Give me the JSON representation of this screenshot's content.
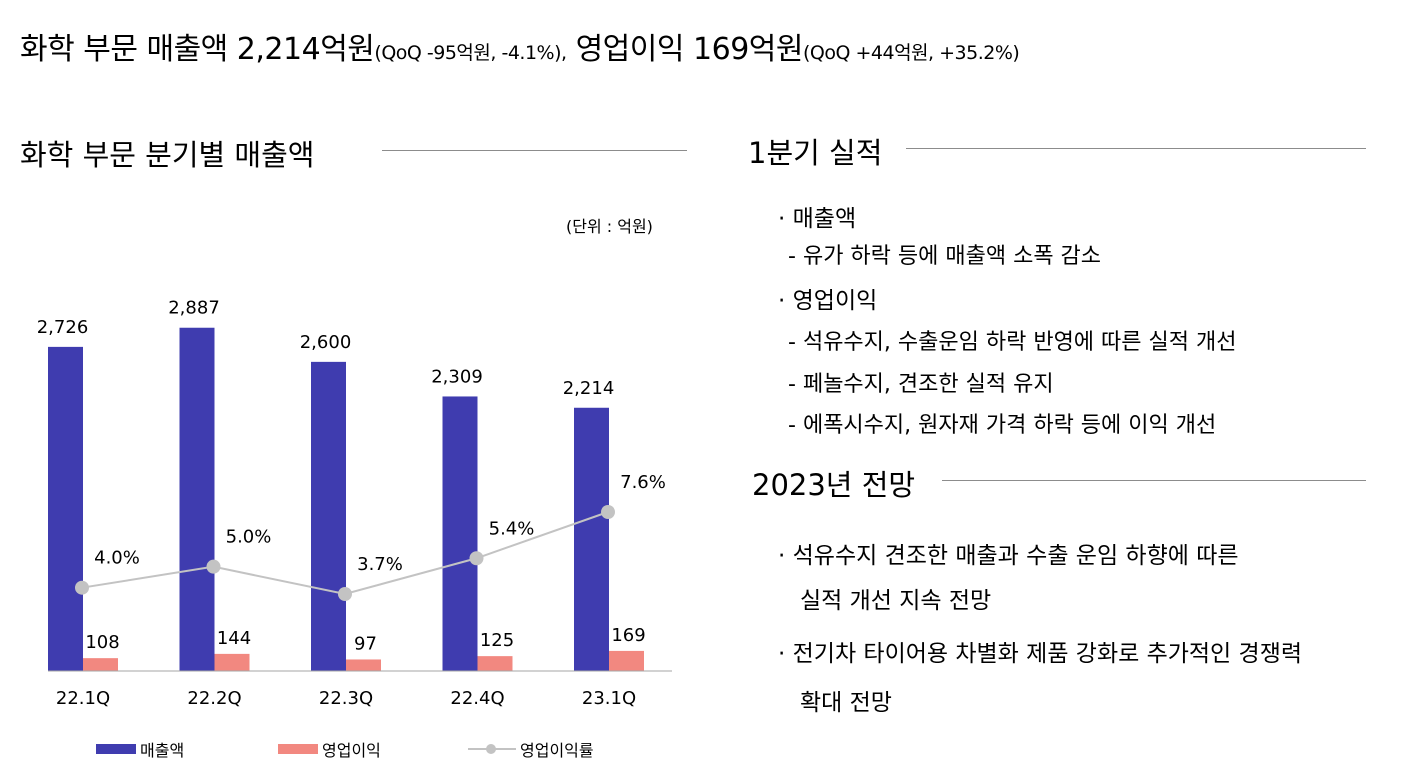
{
  "headline": {
    "part1": "화학 부문 매출액 2,214억원",
    "part1_small": "(QoQ -95억원, -4.1%),",
    "part2": " 영업이익 169억원",
    "part2_small": "(QoQ +44억원, +35.2%)"
  },
  "left_section": {
    "title": "화학 부문 분기별 매출액",
    "unit": "(단위 : 억원)"
  },
  "chart_data": {
    "type": "bar",
    "categories": [
      "22.1Q",
      "22.2Q",
      "22.3Q",
      "22.4Q",
      "23.1Q"
    ],
    "series": [
      {
        "name": "매출액",
        "type": "bar",
        "color": "#3f3caf",
        "values": [
          2726,
          2887,
          2600,
          2309,
          2214
        ],
        "labels": [
          "2,726",
          "2,887",
          "2,600",
          "2,309",
          "2,214"
        ]
      },
      {
        "name": "영업이익",
        "type": "bar",
        "color": "#f28880",
        "values": [
          108,
          144,
          97,
          125,
          169
        ],
        "labels": [
          "108",
          "144",
          "97",
          "125",
          "169"
        ]
      },
      {
        "name": "영업이익률",
        "type": "line",
        "color": "#c3c3c3",
        "values": [
          4.0,
          5.0,
          3.7,
          5.4,
          7.6
        ],
        "labels": [
          "4.0%",
          "5.0%",
          "3.7%",
          "5.4%",
          "7.6%"
        ]
      }
    ],
    "legend_position": "bottom",
    "grid": false
  },
  "right_section": {
    "title1": "1분기 실적",
    "q1_results": [
      {
        "heading": "매출액",
        "items": [
          "유가 하락 등에 매출액 소폭 감소"
        ]
      },
      {
        "heading": "영업이익",
        "items": [
          "석유수지, 수출운임 하락 반영에 따른 실적 개선",
          "페놀수지, 견조한 실적 유지",
          "에폭시수지, 원자재 가격 하락 등에 이익 개선"
        ]
      }
    ],
    "title2": "2023년 전망",
    "outlook": [
      {
        "line1": "석유수지 견조한 매출과 수출 운임 하향에 따른",
        "line2": "실적 개선 지속 전망"
      },
      {
        "line1": "전기차 타이어용 차별화 제품 강화로 추가적인 경쟁력",
        "line2": "확대 전망"
      }
    ],
    "bullet_char": "·",
    "dash_char": "-"
  }
}
